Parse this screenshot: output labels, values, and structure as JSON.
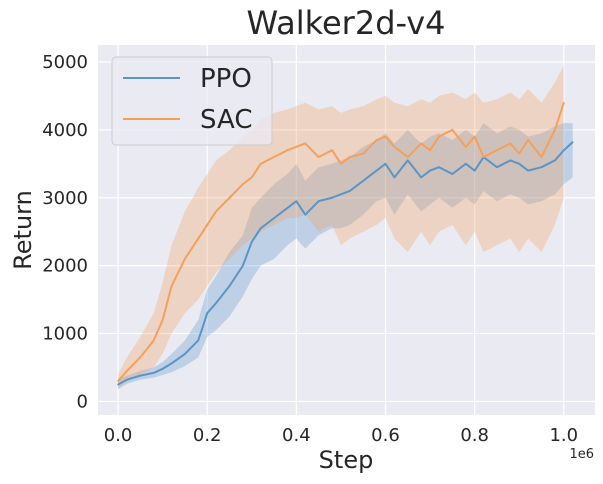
{
  "chart_data": {
    "type": "line",
    "title": "Walker2d-v4",
    "xlabel": "Step",
    "ylabel": "Return",
    "x_offset_text": "1e6",
    "xlim": [
      -0.045,
      1.07
    ],
    "ylim": [
      -200,
      5250
    ],
    "xticks": [
      0.0,
      0.2,
      0.4,
      0.6,
      0.8,
      1.0
    ],
    "xtick_labels": [
      "0.0",
      "0.2",
      "0.4",
      "0.6",
      "0.8",
      "1.0"
    ],
    "yticks": [
      0,
      1000,
      2000,
      3000,
      4000,
      5000
    ],
    "ytick_labels": [
      "0",
      "1000",
      "2000",
      "3000",
      "4000",
      "5000"
    ],
    "grid": true,
    "legend_position": "top-left",
    "series": [
      {
        "name": "PPO",
        "color": "#5b95c6",
        "x": [
          0.0,
          0.02,
          0.05,
          0.08,
          0.1,
          0.12,
          0.15,
          0.18,
          0.2,
          0.22,
          0.25,
          0.28,
          0.3,
          0.32,
          0.35,
          0.38,
          0.4,
          0.42,
          0.45,
          0.48,
          0.5,
          0.52,
          0.55,
          0.58,
          0.6,
          0.62,
          0.65,
          0.68,
          0.7,
          0.72,
          0.75,
          0.78,
          0.8,
          0.82,
          0.85,
          0.88,
          0.9,
          0.92,
          0.95,
          0.98,
          1.0,
          1.02
        ],
        "values": [
          250,
          320,
          380,
          420,
          480,
          560,
          700,
          900,
          1300,
          1450,
          1700,
          2000,
          2350,
          2550,
          2700,
          2850,
          2950,
          2750,
          2950,
          3000,
          3050,
          3100,
          3250,
          3400,
          3500,
          3300,
          3550,
          3300,
          3400,
          3450,
          3350,
          3500,
          3400,
          3600,
          3450,
          3550,
          3500,
          3400,
          3450,
          3550,
          3700,
          3820
        ],
        "lower": [
          180,
          260,
          320,
          350,
          390,
          430,
          520,
          650,
          950,
          1050,
          1250,
          1550,
          1800,
          2000,
          2100,
          2300,
          2400,
          2250,
          2450,
          2550,
          2550,
          2600,
          2750,
          2950,
          3000,
          2750,
          3050,
          2800,
          2900,
          3000,
          2850,
          3000,
          2900,
          3100,
          2950,
          3050,
          3000,
          2900,
          2950,
          3050,
          3200,
          3300
        ],
        "upper": [
          330,
          380,
          450,
          500,
          580,
          700,
          900,
          1200,
          1650,
          1850,
          2200,
          2450,
          2850,
          3000,
          3200,
          3350,
          3500,
          3250,
          3450,
          3500,
          3550,
          3600,
          3750,
          3850,
          3950,
          3800,
          4000,
          3800,
          3900,
          3950,
          3850,
          4000,
          3900,
          4100,
          3950,
          4050,
          4000,
          3900,
          3950,
          4050,
          4100,
          4100
        ]
      },
      {
        "name": "SAC",
        "color": "#f5a05a",
        "x": [
          0.0,
          0.02,
          0.05,
          0.08,
          0.1,
          0.12,
          0.15,
          0.18,
          0.2,
          0.22,
          0.25,
          0.28,
          0.3,
          0.32,
          0.35,
          0.38,
          0.4,
          0.42,
          0.45,
          0.48,
          0.5,
          0.52,
          0.55,
          0.58,
          0.6,
          0.62,
          0.65,
          0.68,
          0.7,
          0.72,
          0.75,
          0.78,
          0.8,
          0.82,
          0.85,
          0.88,
          0.9,
          0.92,
          0.95,
          0.98,
          1.0
        ],
        "values": [
          300,
          450,
          650,
          900,
          1200,
          1700,
          2100,
          2400,
          2600,
          2800,
          3000,
          3200,
          3300,
          3500,
          3600,
          3700,
          3750,
          3800,
          3600,
          3700,
          3500,
          3600,
          3650,
          3850,
          3900,
          3750,
          3600,
          3800,
          3700,
          3900,
          4000,
          3750,
          3900,
          3600,
          3700,
          3800,
          3650,
          3850,
          3600,
          4000,
          4400
        ],
        "lower": [
          200,
          300,
          400,
          500,
          700,
          1000,
          1300,
          1500,
          1700,
          1900,
          2100,
          2300,
          2400,
          2500,
          2600,
          2700,
          2700,
          2750,
          2500,
          2600,
          2300,
          2400,
          2500,
          2600,
          2700,
          2400,
          2200,
          2500,
          2300,
          2500,
          2600,
          2300,
          2500,
          2200,
          2300,
          2400,
          2200,
          2400,
          2200,
          2600,
          3000
        ],
        "upper": [
          400,
          650,
          950,
          1300,
          1750,
          2300,
          2800,
          3150,
          3350,
          3550,
          3700,
          3900,
          4000,
          4150,
          4250,
          4300,
          4350,
          4400,
          4300,
          4350,
          4250,
          4300,
          4350,
          4450,
          4500,
          4400,
          4350,
          4450,
          4400,
          4500,
          4550,
          4450,
          4550,
          4400,
          4450,
          4550,
          4450,
          4600,
          4400,
          4700,
          4950
        ]
      }
    ]
  }
}
